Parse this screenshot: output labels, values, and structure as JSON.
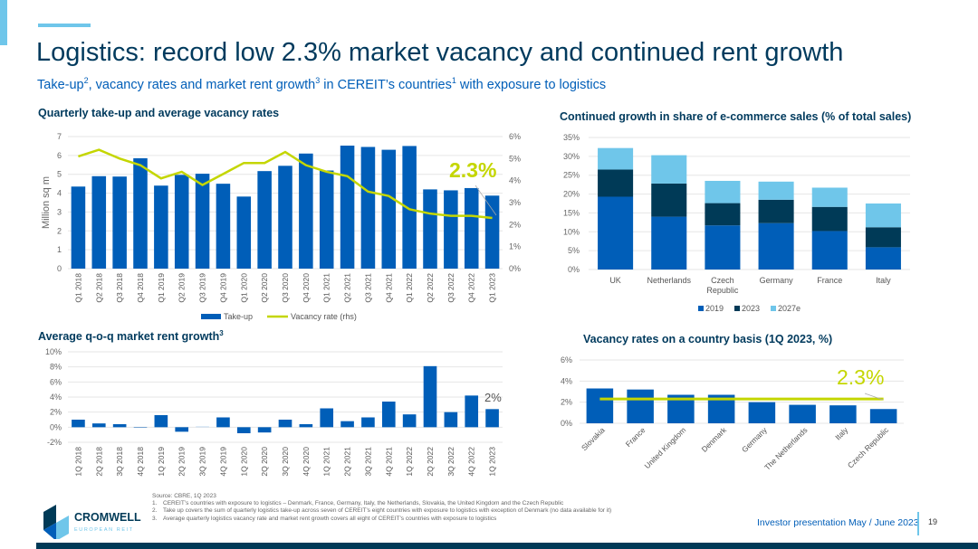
{
  "header": {
    "title": "Logistics: record low 2.3% market vacancy and continued rent growth",
    "subtitle_parts": [
      "Take-up",
      "2",
      ", vacancy rates and market rent growth",
      "3",
      " in CEREIT’s countries",
      "1",
      " with exposure to logistics"
    ]
  },
  "colors": {
    "primary_blue": "#005eb8",
    "dark_navy": "#003a57",
    "light_blue": "#6fc6ea",
    "lime": "#c4d600",
    "title": "#003a5d"
  },
  "chart_data": [
    {
      "id": "takeup",
      "type": "bar+line",
      "title": "Quarterly take-up and average vacancy rates",
      "ylabel": "Million sq m",
      "ylim": [
        0,
        7
      ],
      "y2lim": [
        0,
        6
      ],
      "yticks": [
        "0",
        "1",
        "2",
        "3",
        "4",
        "5",
        "6",
        "7"
      ],
      "y2ticks": [
        "0%",
        "1%",
        "2%",
        "3%",
        "4%",
        "5%",
        "6%"
      ],
      "categories": [
        "Q1 2018",
        "Q2 2018",
        "Q3 2018",
        "Q4 2018",
        "Q1 2019",
        "Q2 2019",
        "Q3 2019",
        "Q4 2019",
        "Q1 2020",
        "Q2 2020",
        "Q3 2020",
        "Q4 2020",
        "Q1 2021",
        "Q2 2021",
        "Q3 2021",
        "Q4 2021",
        "Q1 2022",
        "Q2 2022",
        "Q3 2022",
        "Q4 2022",
        "Q1 2023"
      ],
      "series": [
        {
          "name": "Take-up",
          "type": "bar",
          "values": [
            4.35,
            4.9,
            4.88,
            5.85,
            4.4,
            4.97,
            5.03,
            4.5,
            3.82,
            5.17,
            5.45,
            6.1,
            5.2,
            6.52,
            6.45,
            6.3,
            6.5,
            4.2,
            4.15,
            4.27,
            3.87
          ]
        },
        {
          "name": "Vacancy rate (rhs)",
          "type": "line",
          "axis": "right",
          "values": [
            5.1,
            5.4,
            5.0,
            4.7,
            4.1,
            4.4,
            3.8,
            4.3,
            4.8,
            4.8,
            5.3,
            4.7,
            4.4,
            4.2,
            3.5,
            3.3,
            2.7,
            2.5,
            2.4,
            2.4,
            2.3
          ]
        }
      ],
      "annotation": "2.3%",
      "grid": true,
      "legend": "bottom"
    },
    {
      "id": "rent",
      "type": "bar",
      "title": "Average q-o-q market rent growth",
      "title_sup": "3",
      "ylim": [
        -2,
        10
      ],
      "yticks": [
        "-2%",
        "0%",
        "2%",
        "4%",
        "6%",
        "8%",
        "10%"
      ],
      "categories": [
        "1Q 2018",
        "2Q 2018",
        "3Q 2018",
        "4Q 2018",
        "1Q 2019",
        "2Q 2019",
        "3Q 2019",
        "4Q 2019",
        "1Q 2020",
        "2Q 2020",
        "3Q 2020",
        "4Q 2020",
        "1Q 2021",
        "2Q 2021",
        "3Q 2021",
        "4Q 2021",
        "1Q 2022",
        "2Q 2022",
        "3Q 2022",
        "4Q 2022",
        "1Q 2023"
      ],
      "values": [
        1.0,
        0.5,
        0.4,
        0,
        1.6,
        -0.6,
        0.1,
        1.3,
        -0.8,
        -0.7,
        1.0,
        0.4,
        2.5,
        0.8,
        1.3,
        3.4,
        1.7,
        8.1,
        2.0,
        4.2,
        2.4
      ],
      "annotation": "2%",
      "grid": true
    },
    {
      "id": "ecom",
      "type": "bar",
      "stacked": true,
      "title": "Continued growth in share of e-commerce sales (% of total sales)",
      "ylim": [
        0,
        35
      ],
      "yticks": [
        "0%",
        "5%",
        "10%",
        "15%",
        "20%",
        "25%",
        "30%",
        "35%"
      ],
      "categories": [
        "UK",
        "Netherlands",
        "Czech Republic",
        "Germany",
        "France",
        "Italy"
      ],
      "series": [
        {
          "name": "2019",
          "values": [
            19.3,
            14.0,
            11.7,
            12.3,
            10.2,
            5.9
          ]
        },
        {
          "name": "2023",
          "values": [
            7.2,
            8.8,
            5.9,
            6.2,
            6.4,
            5.3
          ]
        },
        {
          "name": "2027e",
          "values": [
            5.7,
            7.5,
            5.9,
            4.8,
            5.1,
            6.3
          ]
        }
      ],
      "grid": true,
      "legend": "bottom"
    },
    {
      "id": "vac",
      "type": "bar",
      "title": "Vacancy rates on a country basis (1Q 2023, %)",
      "ylim": [
        0,
        6
      ],
      "yticks": [
        "0%",
        "2%",
        "4%",
        "6%"
      ],
      "categories": [
        "Slovakia",
        "France",
        "United Kingdom",
        "Denmark",
        "Germany",
        "The Netherlands",
        "Italy",
        "Czech Republic"
      ],
      "values": [
        3.3,
        3.2,
        2.7,
        2.7,
        2.0,
        1.75,
        1.7,
        1.35
      ],
      "average": 2.3,
      "annotation": "2.3%",
      "grid": true
    }
  ],
  "footnotes": {
    "source": "Source: CBRE, 1Q 2023",
    "items": [
      "CEREIT’s countries with exposure to logistics – Denmark, France, Germany, Italy, the Netherlands, Slovakia, the United Kingdom and the Czech Republic",
      "Take up covers the sum of quarterly logistics take-up across seven of CEREIT’s eight countries with exposure to logistics with exception of Denmark (no data available for it)",
      "Average quarterly logistics vacancy rate and market rent growth covers all eight of CEREIT’s countries with exposure to logistics"
    ]
  },
  "footer": {
    "presentation": "Investor presentation May / June 2023",
    "page": "19",
    "logo_name": "CROMWELL",
    "logo_sub": "EUROPEAN REIT"
  }
}
